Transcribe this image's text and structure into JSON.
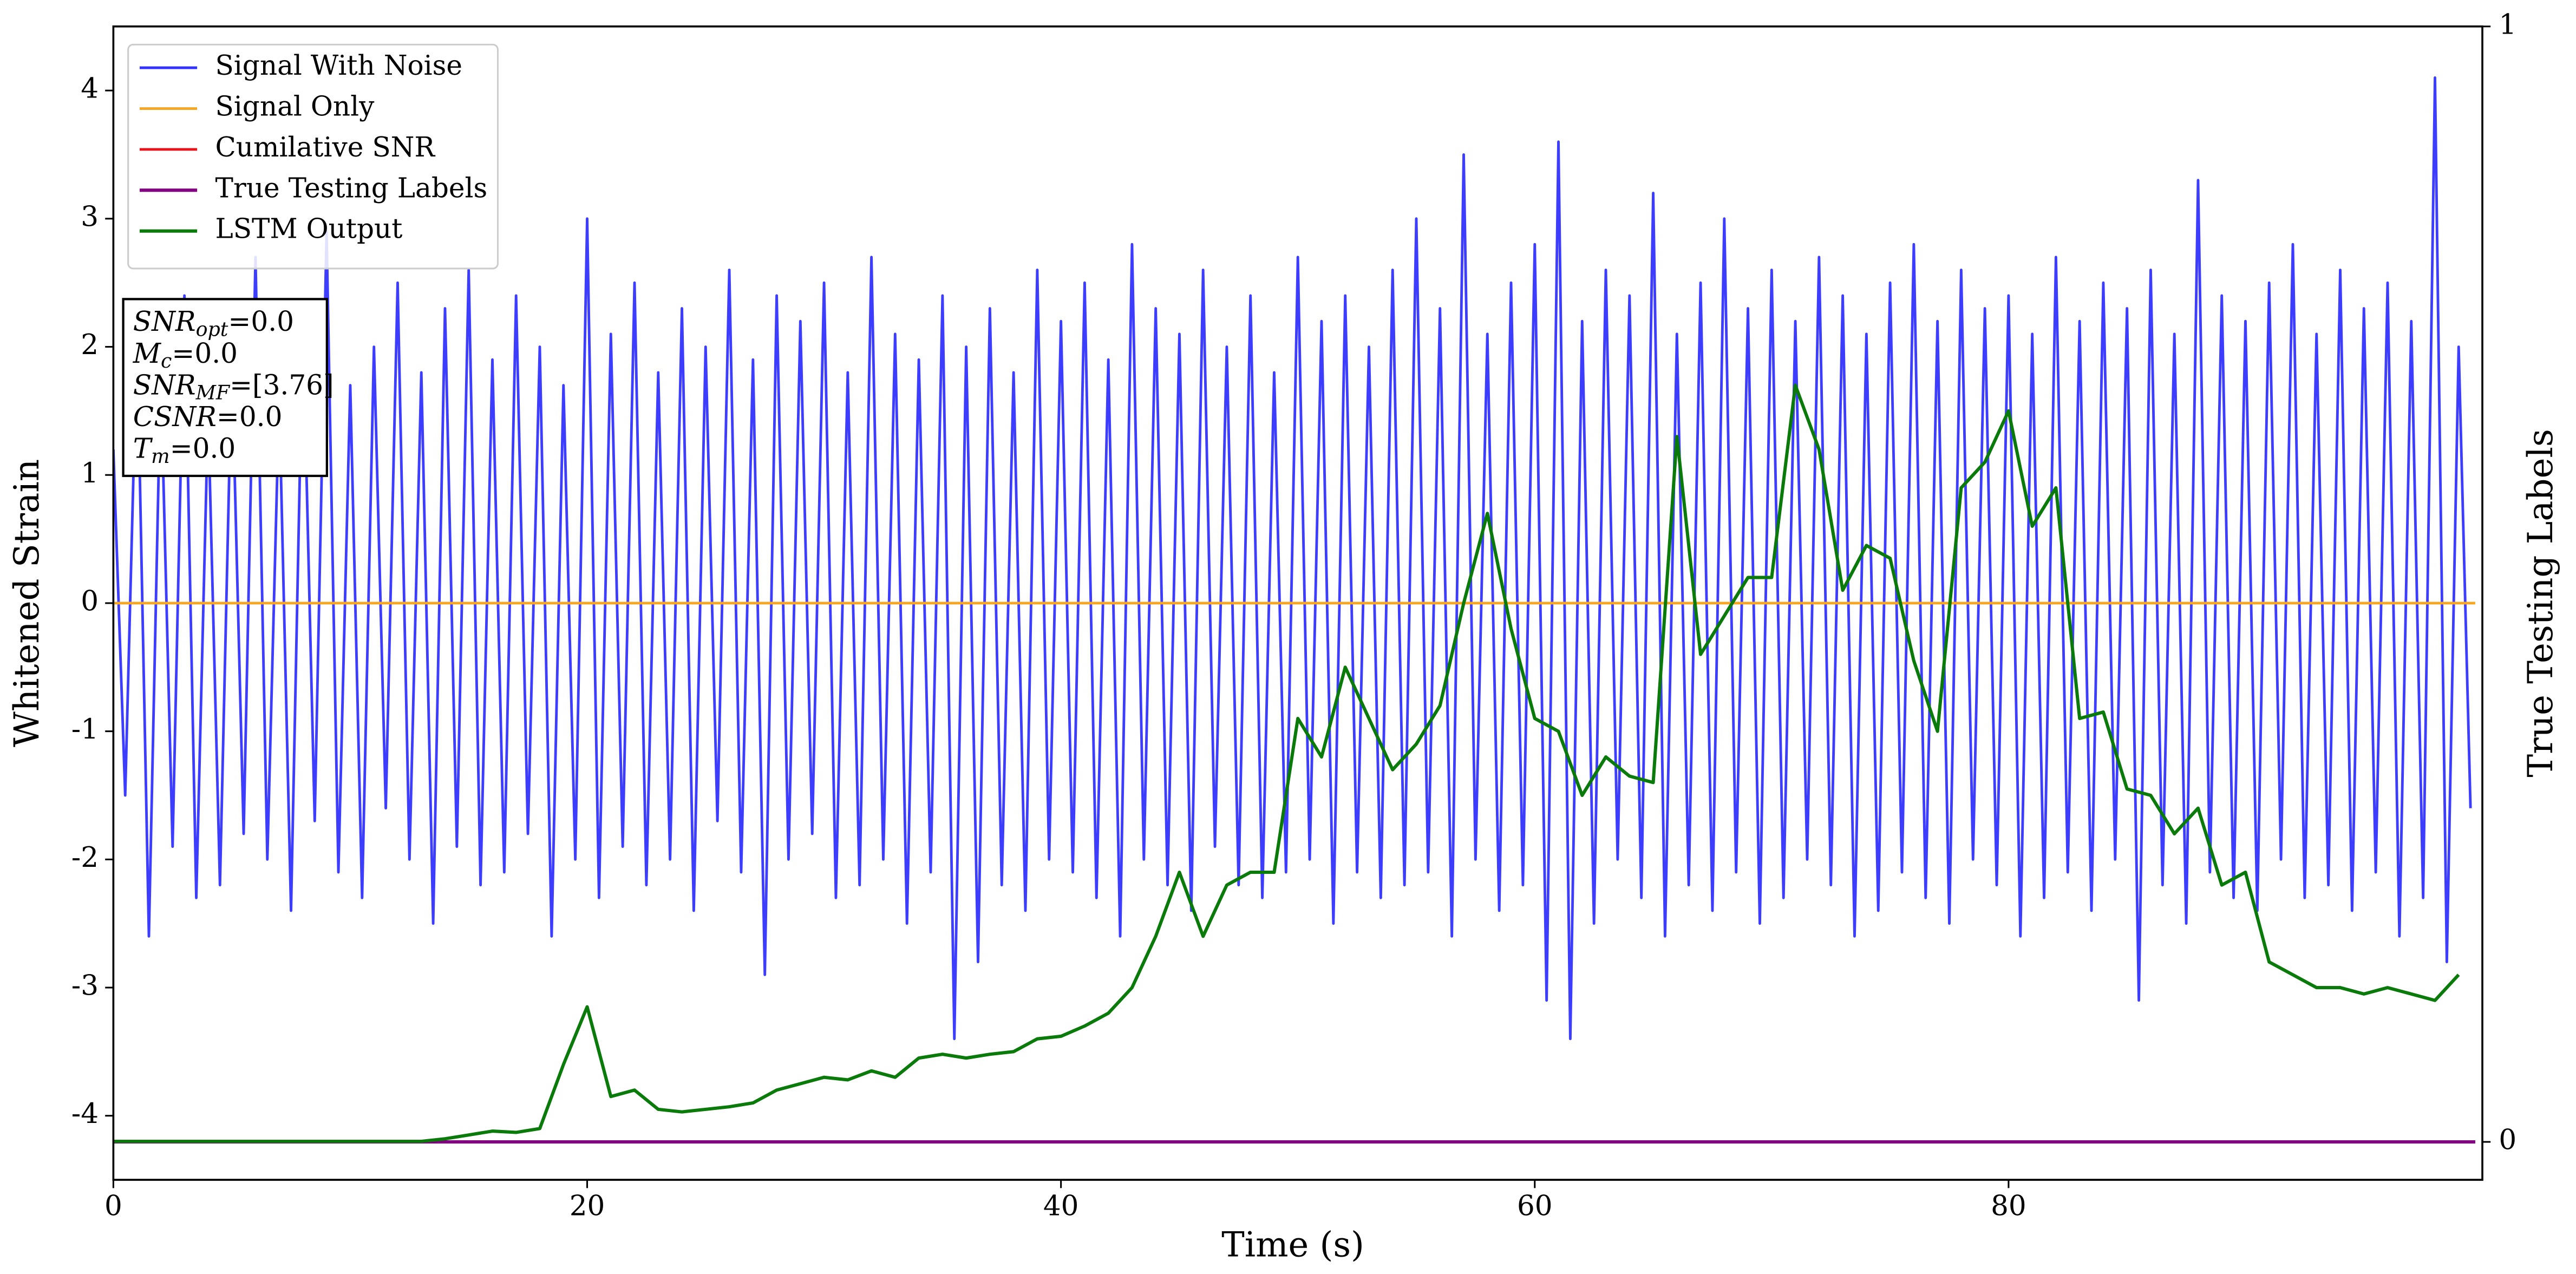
{
  "chart_data": {
    "type": "line",
    "xlabel": "Time (s)",
    "ylabel": "Whitened Strain",
    "y2label": "True Testing Labels",
    "xlim": [
      0,
      100
    ],
    "xticks": [
      0,
      20,
      40,
      60,
      80
    ],
    "ylim": [
      -4.5,
      4.5
    ],
    "yticks": [
      -4,
      -3,
      -2,
      -1,
      0,
      1,
      2,
      3,
      4
    ],
    "y2lim": [
      -0.034,
      1
    ],
    "y2ticks": [
      0,
      1
    ],
    "legend": "upper left",
    "annotation": [
      {
        "base": "SNR",
        "sub": "opt",
        "rest": "=0.0"
      },
      {
        "base": "M",
        "sub": "c",
        "rest": "=0.0"
      },
      {
        "base": "SNR",
        "sub": "MF",
        "rest": "=[3.76]"
      },
      {
        "base": "CSNR",
        "sub": "",
        "rest": "=0.0"
      },
      {
        "base": "T",
        "sub": "m",
        "rest": "=0.0"
      }
    ],
    "series": [
      {
        "name": "Signal With Noise",
        "color": "#3333ff",
        "width": 1.6,
        "x": [
          0,
          0.5,
          1,
          1.5,
          2,
          2.5,
          3,
          3.5,
          4,
          4.5,
          5,
          5.5,
          6,
          6.5,
          7,
          7.5,
          8,
          8.5,
          9,
          9.5,
          10,
          10.5,
          11,
          11.5,
          12,
          12.5,
          13,
          13.5,
          14,
          14.5,
          15,
          15.5,
          16,
          16.5,
          17,
          17.5,
          18,
          18.5,
          19,
          19.5,
          20,
          20.5,
          21,
          21.5,
          22,
          22.5,
          23,
          23.5,
          24,
          24.5,
          25,
          25.5,
          26,
          26.5,
          27,
          27.5,
          28,
          28.5,
          29,
          29.5,
          30,
          30.5,
          31,
          31.5,
          32,
          32.5,
          33,
          33.5,
          34,
          34.5,
          35,
          35.5,
          36,
          36.5,
          37,
          37.5,
          38,
          38.5,
          39,
          39.5,
          40,
          40.5,
          41,
          41.5,
          42,
          42.5,
          43,
          43.5,
          44,
          44.5,
          45,
          45.5,
          46,
          46.5,
          47,
          47.5,
          48,
          48.5,
          49,
          49.5,
          50,
          50.5,
          51,
          51.5,
          52,
          52.5,
          53,
          53.5,
          54,
          54.5,
          55,
          55.5,
          56,
          56.5,
          57,
          57.5,
          58,
          58.5,
          59,
          59.5,
          60,
          60.5,
          61,
          61.5,
          62,
          62.5,
          63,
          63.5,
          64,
          64.5,
          65,
          65.5,
          66,
          66.5,
          67,
          67.5,
          68,
          68.5,
          69,
          69.5,
          70,
          70.5,
          71,
          71.5,
          72,
          72.5,
          73,
          73.5,
          74,
          74.5,
          75,
          75.5,
          76,
          76.5,
          77,
          77.5,
          78,
          78.5,
          79,
          79.5,
          80,
          80.5,
          81,
          81.5,
          82,
          82.5,
          83,
          83.5,
          84,
          84.5,
          85,
          85.5,
          86,
          86.5,
          87,
          87.5,
          88,
          88.5,
          89,
          89.5,
          90,
          90.5,
          91,
          91.5,
          92,
          92.5,
          93,
          93.5,
          94,
          94.5,
          95,
          95.5,
          96,
          96.5,
          97,
          97.5,
          98,
          98.5,
          99,
          99.5
        ],
        "values": [
          1.2,
          -1.5,
          2.1,
          -2.6,
          1.8,
          -1.9,
          2.4,
          -2.3,
          1.5,
          -2.2,
          1.9,
          -1.8,
          2.7,
          -2.0,
          1.6,
          -2.4,
          2.2,
          -1.7,
          2.9,
          -2.1,
          1.7,
          -2.3,
          2.0,
          -1.6,
          2.5,
          -2.0,
          1.8,
          -2.5,
          2.3,
          -1.9,
          2.6,
          -2.2,
          1.9,
          -2.1,
          2.4,
          -1.8,
          2.0,
          -2.6,
          1.7,
          -2.0,
          3.0,
          -2.3,
          2.1,
          -1.9,
          2.5,
          -2.2,
          1.8,
          -2.0,
          2.3,
          -2.4,
          2.0,
          -1.7,
          2.6,
          -2.1,
          1.9,
          -2.9,
          2.4,
          -2.0,
          2.2,
          -1.8,
          2.5,
          -2.3,
          1.8,
          -2.2,
          2.7,
          -2.0,
          2.1,
          -2.5,
          1.9,
          -2.1,
          2.4,
          -3.4,
          2.0,
          -2.8,
          2.3,
          -2.2,
          1.8,
          -2.4,
          2.6,
          -2.0,
          2.2,
          -2.1,
          2.5,
          -2.3,
          1.9,
          -2.6,
          2.8,
          -2.0,
          2.3,
          -2.2,
          2.1,
          -2.4,
          2.6,
          -1.9,
          2.0,
          -2.2,
          2.4,
          -2.3,
          1.8,
          -2.1,
          2.7,
          -2.0,
          2.2,
          -2.5,
          2.4,
          -2.1,
          2.0,
          -2.3,
          2.6,
          -2.2,
          3.0,
          -2.1,
          2.3,
          -2.6,
          3.5,
          -2.0,
          2.1,
          -2.4,
          2.5,
          -2.2,
          2.8,
          -3.1,
          3.6,
          -3.4,
          2.2,
          -2.5,
          2.6,
          -2.0,
          2.4,
          -2.3,
          3.2,
          -2.6,
          2.1,
          -2.2,
          2.5,
          -2.4,
          3.0,
          -2.1,
          2.3,
          -2.5,
          2.6,
          -2.3,
          2.2,
          -2.0,
          2.7,
          -2.2,
          2.4,
          -2.6,
          2.1,
          -2.4,
          2.5,
          -2.1,
          2.8,
          -2.3,
          2.2,
          -2.5,
          2.6,
          -2.0,
          2.3,
          -2.2,
          2.4,
          -2.6,
          2.1,
          -2.3,
          2.7,
          -2.1,
          2.2,
          -2.4,
          2.5,
          -2.0,
          2.3,
          -3.1,
          2.6,
          -2.2,
          2.1,
          -2.5,
          3.3,
          -2.1,
          2.4,
          -2.3,
          2.2,
          -2.4,
          2.5,
          -2.0,
          2.8,
          -2.3,
          2.1,
          -2.2,
          2.6,
          -2.4,
          2.3,
          -2.1,
          2.5,
          -2.6,
          2.2,
          -2.3,
          4.1,
          -2.8,
          2.0,
          -1.6
        ]
      },
      {
        "name": "Signal Only",
        "color": "#f5a623",
        "width": 1.6,
        "x": [
          0,
          99.7
        ],
        "values": [
          0,
          0
        ]
      },
      {
        "name": "Cumilative SNR",
        "color": "#e8141b",
        "width": 1.6,
        "axis": "y2",
        "x": [
          0,
          99.7
        ],
        "values": [
          0,
          0
        ]
      },
      {
        "name": "True Testing Labels",
        "color": "#800080",
        "width": 2,
        "axis": "y2",
        "x": [
          0,
          99.7
        ],
        "values": [
          0,
          0
        ]
      },
      {
        "name": "LSTM Output",
        "color": "#0a7a0a",
        "width": 2,
        "x": [
          0,
          1,
          2,
          3,
          4,
          5,
          6,
          7,
          8,
          9,
          10,
          11,
          12,
          13,
          14,
          15,
          16,
          17,
          18,
          19,
          20,
          21,
          22,
          23,
          24,
          25,
          26,
          27,
          28,
          29,
          30,
          31,
          32,
          33,
          34,
          35,
          36,
          37,
          38,
          39,
          40,
          41,
          42,
          43,
          44,
          45,
          46,
          47,
          48,
          49,
          50,
          51,
          52,
          53,
          54,
          55,
          56,
          57,
          58,
          59,
          60,
          61,
          62,
          63,
          64,
          65,
          66,
          67,
          68,
          69,
          70,
          71,
          72,
          73,
          74,
          75,
          76,
          77,
          78,
          79,
          80,
          81,
          82,
          83,
          84,
          85,
          86,
          87,
          88,
          89,
          90,
          91,
          92,
          93,
          94,
          95,
          96,
          97,
          98,
          99
        ],
        "values": [
          -4.2,
          -4.2,
          -4.2,
          -4.2,
          -4.2,
          -4.2,
          -4.2,
          -4.2,
          -4.2,
          -4.2,
          -4.2,
          -4.2,
          -4.2,
          -4.2,
          -4.18,
          -4.15,
          -4.12,
          -4.13,
          -4.1,
          -3.6,
          -3.15,
          -3.85,
          -3.8,
          -3.95,
          -3.97,
          -3.95,
          -3.93,
          -3.9,
          -3.8,
          -3.75,
          -3.7,
          -3.72,
          -3.65,
          -3.7,
          -3.55,
          -3.52,
          -3.55,
          -3.52,
          -3.5,
          -3.4,
          -3.38,
          -3.3,
          -3.2,
          -3.0,
          -2.6,
          -2.1,
          -2.6,
          -2.2,
          -2.1,
          -2.1,
          -0.9,
          -1.2,
          -0.5,
          -0.9,
          -1.3,
          -1.1,
          -0.8,
          0.0,
          0.7,
          -0.2,
          -0.9,
          -1.0,
          -1.5,
          -1.2,
          -1.35,
          -1.4,
          1.3,
          -0.4,
          -0.1,
          0.2,
          0.2,
          1.7,
          1.2,
          0.1,
          0.45,
          0.35,
          -0.45,
          -1.0,
          0.9,
          1.1,
          1.5,
          0.6,
          0.9,
          -0.9,
          -0.85,
          -1.45,
          -1.5,
          -1.8,
          -1.6,
          -2.2,
          -2.1,
          -2.8,
          -2.9,
          -3.0,
          -3.0,
          -3.05,
          -3.0,
          -3.05,
          -3.1,
          -2.9
        ]
      }
    ]
  }
}
